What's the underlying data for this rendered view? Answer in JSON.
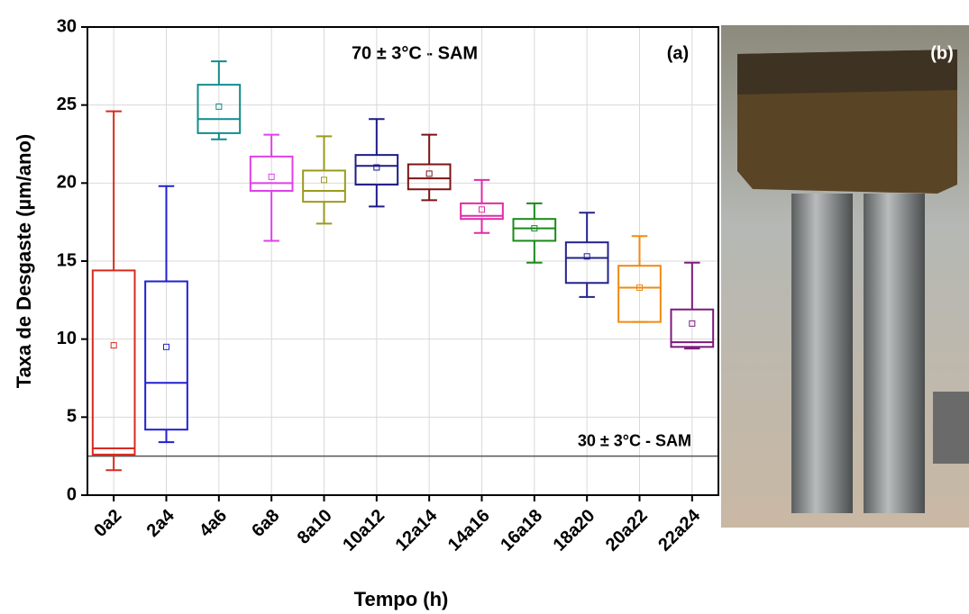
{
  "chart_data": {
    "type": "box",
    "annotation": "70 ± 3°C - SAM",
    "panel_label": "(a)",
    "x_label": "Tempo (h)",
    "y_label": "Taxa de Desgaste (µm/ano)",
    "categories": [
      "0a2",
      "2a4",
      "4a6",
      "6a8",
      "8a10",
      "10a12",
      "12a14",
      "14a16",
      "16a18",
      "18a20",
      "20a22",
      "22a24"
    ],
    "min": [
      1.6,
      3.4,
      22.8,
      16.3,
      17.4,
      18.5,
      18.9,
      16.8,
      14.9,
      12.7,
      11.1,
      9.4
    ],
    "q1": [
      2.6,
      4.2,
      23.2,
      19.5,
      18.8,
      19.9,
      19.6,
      17.7,
      16.3,
      13.6,
      11.1,
      9.5
    ],
    "median": [
      3.0,
      7.2,
      24.1,
      20.0,
      19.5,
      21.1,
      20.3,
      17.9,
      17.1,
      15.2,
      13.3,
      9.8
    ],
    "q3": [
      14.4,
      13.7,
      26.3,
      21.7,
      20.8,
      21.8,
      21.2,
      18.7,
      17.7,
      16.2,
      14.7,
      11.9
    ],
    "max": [
      24.6,
      19.8,
      27.8,
      23.1,
      23.0,
      24.1,
      23.1,
      20.2,
      18.7,
      18.1,
      16.6,
      14.9
    ],
    "mean": [
      9.6,
      9.5,
      24.9,
      20.4,
      20.2,
      21.0,
      20.6,
      18.3,
      17.1,
      15.3,
      13.3,
      11.0
    ],
    "colors": [
      "#d92a1e",
      "#2020d0",
      "#128c8c",
      "#e040e8",
      "#9a9a1c",
      "#1c1c86",
      "#7a1414",
      "#e02ca8",
      "#1a8a1a",
      "#22228c",
      "#f08a10",
      "#7c1a7c"
    ],
    "reference_line": {
      "value": 2.5,
      "label": "30 ± 3°C - SAM"
    },
    "ylim": [
      0,
      30
    ],
    "yticks": [
      0,
      5,
      10,
      15,
      20,
      25,
      30
    ],
    "grid": true
  },
  "photo": {
    "label": "(b)"
  }
}
